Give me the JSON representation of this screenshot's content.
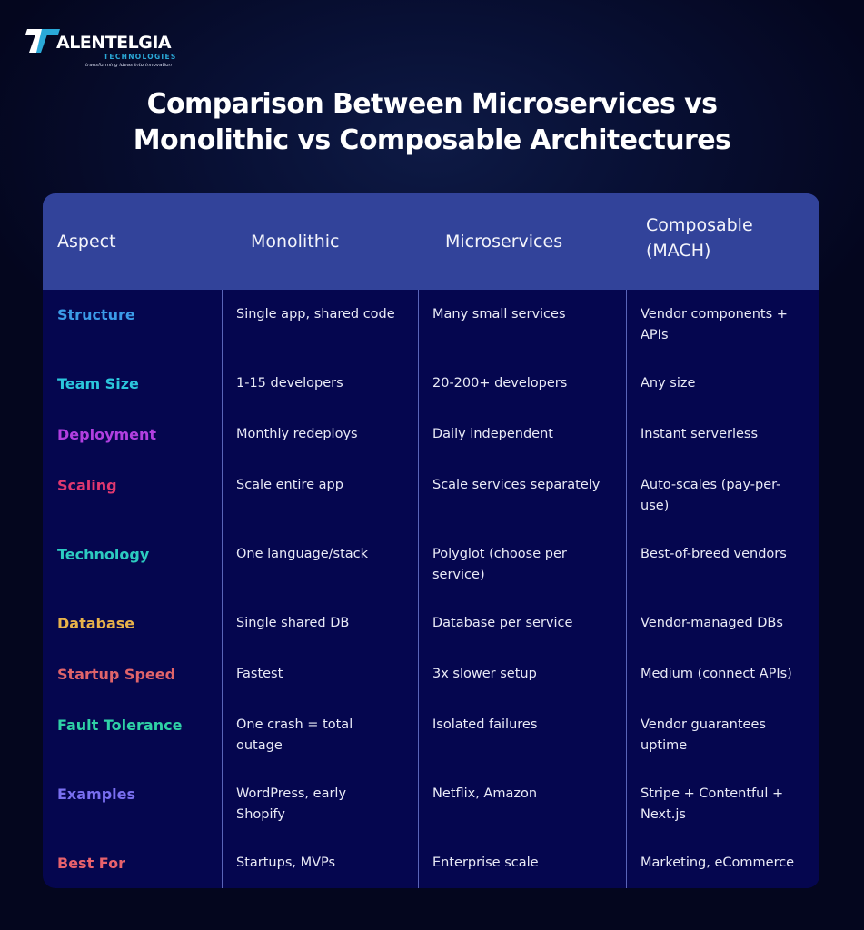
{
  "brand": {
    "logo_mark": "7",
    "name": "ALENTELGIA",
    "subtitle": "TECHNOLOGIES",
    "tagline": "transforming ideas into innovation",
    "colors": {
      "mark_white": "#ffffff",
      "mark_teal": "#2aa9d8"
    }
  },
  "title": {
    "line1": "Comparison Between Microservices vs",
    "line2": "Monolithic vs Composable Architectures"
  },
  "colors": {
    "background": "#04061e",
    "header_bg": "#32439a",
    "table_bg": "#05064f",
    "divider": "#5a64b8",
    "cell_text": "#e9eaf6"
  },
  "table": {
    "headers": {
      "aspect": "Aspect",
      "monolithic": "Monolithic",
      "microservices": "Microservices",
      "composable_line1": "Composable",
      "composable_line2": "(MACH)"
    },
    "rows": [
      {
        "aspect": "Structure",
        "color": "#3b9be8",
        "monolithic": "Single app, shared code",
        "microservices": "Many small services",
        "composable": "Vendor components + APIs"
      },
      {
        "aspect": "Team Size",
        "color": "#2bc6dc",
        "monolithic": "1-15 developers",
        "microservices": "20-200+ developers",
        "composable": "Any size"
      },
      {
        "aspect": "Deployment",
        "color": "#b13fe0",
        "monolithic": "Monthly redeploys",
        "microservices": "Daily independent",
        "composable": "Instant serverless"
      },
      {
        "aspect": "Scaling",
        "color": "#e0386f",
        "monolithic": "Scale entire app",
        "microservices": "Scale services separately",
        "composable": "Auto-scales (pay-per-use)"
      },
      {
        "aspect": "Technology",
        "color": "#2ccbc0",
        "monolithic": "One language/stack",
        "microservices": "Polyglot (choose per service)",
        "composable": "Best-of-breed vendors"
      },
      {
        "aspect": "Database",
        "color": "#e8b24a",
        "monolithic": "Single shared DB",
        "microservices": "Database per service",
        "composable": "Vendor-managed DBs"
      },
      {
        "aspect": "Startup Speed",
        "color": "#e0646a",
        "monolithic": "Fastest",
        "microservices": "3x slower setup",
        "composable": "Medium (connect APIs)"
      },
      {
        "aspect": "Fault Tolerance",
        "color": "#2fd1a6",
        "monolithic": "One crash = total outage",
        "microservices": "Isolated failures",
        "composable": "Vendor guarantees uptime"
      },
      {
        "aspect": "Examples",
        "color": "#7a6ff0",
        "monolithic": "WordPress, early Shopify",
        "microservices": "Netflix, Amazon",
        "composable": "Stripe + Contentful + Next.js"
      },
      {
        "aspect": "Best For",
        "color": "#e8626c",
        "monolithic": "Startups, MVPs",
        "microservices": "Enterprise scale",
        "composable": "Marketing, eCommerce"
      }
    ]
  }
}
